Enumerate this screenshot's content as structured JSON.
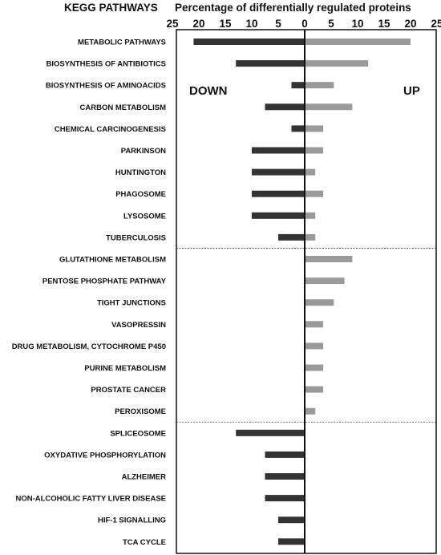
{
  "chart_data": {
    "type": "bar",
    "orientation": "horizontal-diverging",
    "categories_heading": "KEGG PATHWAYS",
    "xlabel": "Percentage of differentially regulated proteins",
    "xlim": [
      -25,
      25
    ],
    "tick_labels": [
      "25",
      "20",
      "15",
      "10",
      "5",
      "0",
      "5",
      "10",
      "15",
      "20",
      "25"
    ],
    "tick_values": [
      -25,
      -20,
      -15,
      -10,
      -5,
      0,
      5,
      10,
      15,
      20,
      25
    ],
    "side_labels": {
      "down": "DOWN",
      "up": "UP"
    },
    "categories": [
      "METABOLIC PATHWAYS",
      "BIOSYNTHESIS OF ANTIBIOTICS",
      "BIOSYNTHESIS OF AMINOACIDS",
      "CARBON METABOLISM",
      "CHEMICAL CARCINOGENESIS",
      "PARKINSON",
      "HUNTINGTON",
      "PHAGOSOME",
      "LYSOSOME",
      "TUBERCULOSIS",
      "GLUTATHIONE METABOLISM",
      "PENTOSE PHOSPHATE PATHWAY",
      "TIGHT JUNCTIONS",
      "VASOPRESSIN",
      "DRUG METABOLISM, CYTOCHROME P450",
      "PURINE METABOLISM",
      "PROSTATE CANCER",
      "PEROXISOME",
      "SPLICEOSOME",
      "OXYDATIVE PHOSPHORYLATION",
      "ALZHEIMER",
      "NON-ALCOHOLIC FATTY LIVER DISEASE",
      "HIF-1 SIGNALLING",
      "TCA CYCLE"
    ],
    "series": [
      {
        "key": "down",
        "color": "#333333",
        "values": [
          21,
          13,
          2.5,
          7.5,
          2.5,
          10,
          10,
          10,
          10,
          5,
          0,
          0,
          0,
          0,
          0,
          0,
          0,
          0,
          13,
          7.5,
          7.5,
          7.5,
          5,
          5
        ]
      },
      {
        "key": "up",
        "color": "#9a9a9a",
        "values": [
          20,
          12,
          5.5,
          9,
          3.5,
          3.5,
          2,
          3.5,
          2,
          2,
          9,
          7.5,
          5.5,
          3.5,
          3.5,
          3.5,
          3.5,
          2,
          0,
          0,
          0,
          0,
          0,
          0
        ]
      }
    ],
    "group_separators_after": [
      9,
      17
    ],
    "grid": false
  }
}
